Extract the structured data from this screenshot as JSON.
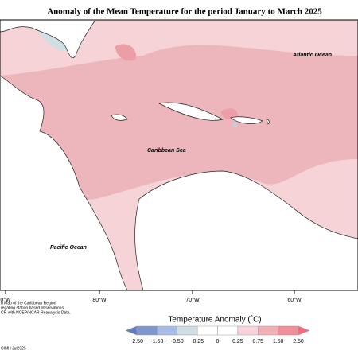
{
  "title": "Anomaly of the Mean Temperature for the period January to March 2025",
  "labels": {
    "atlantic": "Atlantic Ocean",
    "caribbean": "Caribbean Sea",
    "pacific": "Pacific Ocean"
  },
  "longitudes": [
    "0°W",
    "80°W",
    "70°W",
    "60°W"
  ],
  "colorbar": {
    "title": "Temperature Anomaly (˚C)",
    "ticks": [
      "-2.50",
      "-1.50",
      "-0.50",
      "-0.25",
      "0",
      "0.25",
      "0.75",
      "1.50",
      "2.50"
    ],
    "colors": [
      "#7d98cf",
      "#a8bde6",
      "#cfdde6",
      "#ffffff",
      "#ffffff",
      "#f7d4d7",
      "#efb0b6",
      "#f38d98"
    ],
    "low_color": "#5f7fc0",
    "high_color": "#f26d7d"
  },
  "notes": [
    "n Map of the Caribbean Region",
    "regating station based observations,",
    "CF, with NCEP/NCAR Reanalysis Data.",
    "CIMH Jul2025"
  ]
}
